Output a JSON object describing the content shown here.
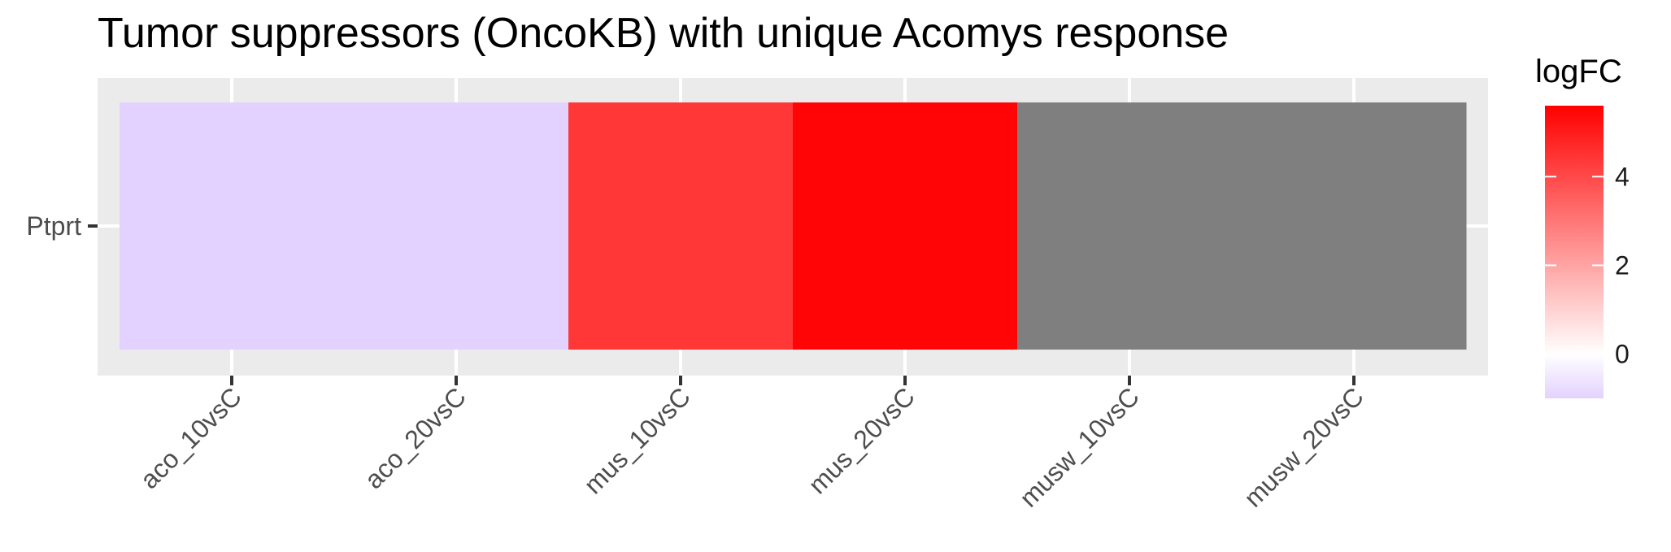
{
  "chart_data": {
    "type": "heatmap",
    "title": "Tumor suppressors (OncoKB) with unique Acomys response",
    "xlabel": "",
    "ylabel": "",
    "x_categories": [
      "aco_10vsC",
      "aco_20vsC",
      "mus_10vsC",
      "mus_20vsC",
      "musw_10vsC",
      "musw_20vsC"
    ],
    "y_categories": [
      "Ptprt"
    ],
    "cells": [
      {
        "x": "aco_10vsC",
        "y": "Ptprt",
        "value": -1.0
      },
      {
        "x": "aco_20vsC",
        "y": "Ptprt",
        "value": -1.0
      },
      {
        "x": "mus_10vsC",
        "y": "Ptprt",
        "value": 4.4
      },
      {
        "x": "mus_20vsC",
        "y": "Ptprt",
        "value": 5.5
      },
      {
        "x": "musw_10vsC",
        "y": "Ptprt",
        "value": null
      },
      {
        "x": "musw_20vsC",
        "y": "Ptprt",
        "value": null
      }
    ],
    "legend": {
      "title": "logFC",
      "ticks": [
        0,
        2,
        4
      ],
      "range": [
        -1.0,
        5.6
      ]
    },
    "colors": {
      "low": "#E3D1FF",
      "mid": "#FFFFFF",
      "high": "#FF0000",
      "na": "#7F7F7F",
      "panel": "#EBEBEB",
      "grid": "#FFFFFF"
    },
    "grid": true,
    "legend_position": "right"
  }
}
